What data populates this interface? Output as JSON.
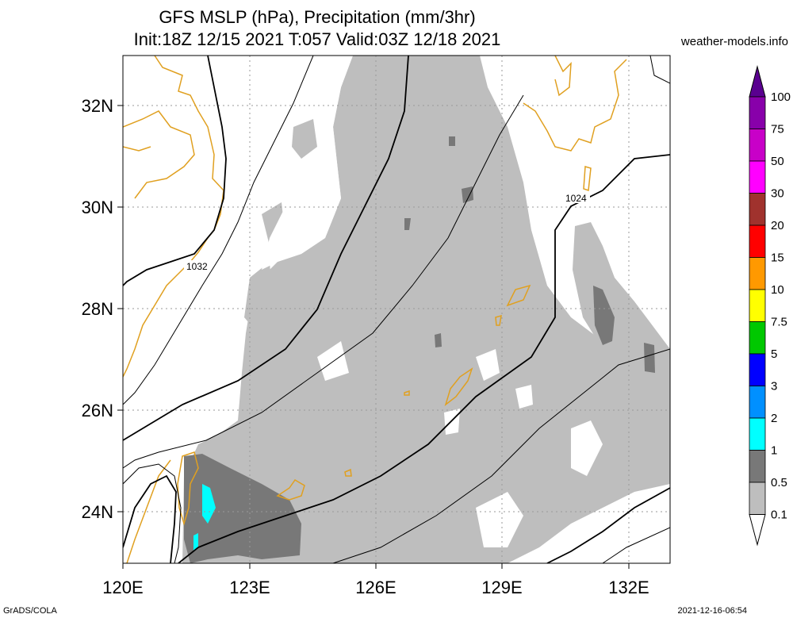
{
  "header": {
    "title_line1": "GFS MSLP (hPa), Precipitation (mm/3hr)",
    "title_line2": "Init:18Z 12/15 2021 T:057 Valid:03Z 12/18 2021",
    "site": "weather-models.info"
  },
  "footer": {
    "left": "GrADS/COLA",
    "right": "2021-12-16-06:54"
  },
  "map": {
    "lon_labels": [
      "120E",
      "123E",
      "126E",
      "129E",
      "132E"
    ],
    "lat_labels": [
      "32N",
      "30N",
      "28N",
      "26N",
      "24N"
    ],
    "isobar_labels": [
      "1032",
      "1024"
    ]
  },
  "colorbar": {
    "labels": [
      "100",
      "75",
      "50",
      "30",
      "20",
      "15",
      "10",
      "7.5",
      "5",
      "3",
      "2",
      "1",
      "0.5",
      "0.1"
    ],
    "colors": [
      "#5a0090",
      "#8800aa",
      "#c800c8",
      "#ff00ff",
      "#a0322d",
      "#ff0000",
      "#ff9900",
      "#ffff00",
      "#00c800",
      "#0000ff",
      "#0090ff",
      "#00ffff",
      "#787878",
      "#bebebe",
      "#ffffff"
    ]
  }
}
